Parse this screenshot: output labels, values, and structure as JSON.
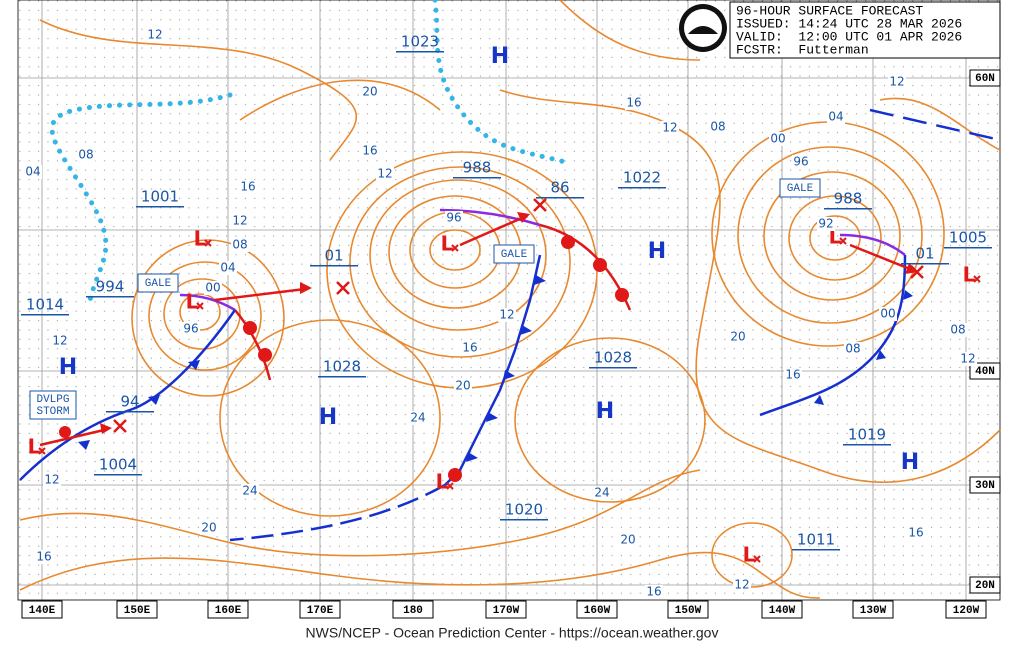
{
  "header": {
    "title": "96-HOUR SURFACE FORECAST",
    "issued": "ISSUED: 14:24 UTC 28 MAR 2026",
    "valid": "VALID:  12:00 UTC 01 APR 2026",
    "forecaster": "FCSTR:  Futterman"
  },
  "footer": "NWS/NCEP - Ocean Prediction Center - https://ocean.weather.gov",
  "longitude_labels": [
    "140E",
    "150E",
    "160E",
    "170E",
    "180",
    "170W",
    "160W",
    "150W",
    "140W",
    "130W",
    "120W"
  ],
  "latitude_labels": [
    "60N",
    "40N",
    "30N",
    "20N"
  ],
  "central_pressures": [
    "1023",
    "1001",
    "994",
    "1014",
    "1004",
    "94",
    "01",
    "1028",
    "988",
    "86",
    "1022",
    "1028",
    "1020",
    "988",
    "1005",
    "01",
    "1019",
    "1011"
  ],
  "high_labels": [
    "H",
    "H",
    "H",
    "H",
    "H",
    "H"
  ],
  "low_labels": [
    "L",
    "L",
    "L",
    "L",
    "L",
    "L",
    "L",
    "L"
  ],
  "warnings": [
    "GALE",
    "GALE",
    "GALE"
  ],
  "storm_warning": {
    "line1": "DVLPG",
    "line2": "STORM"
  },
  "isobar_labels": [
    "12",
    "20",
    "16",
    "12",
    "16",
    "12",
    "08",
    "04",
    "00",
    "96",
    "96",
    "12",
    "16",
    "20",
    "24",
    "24",
    "20",
    "16",
    "12",
    "12",
    "04",
    "08",
    "16",
    "12",
    "08",
    "04",
    "00",
    "96",
    "92",
    "00",
    "08",
    "20",
    "16",
    "08",
    "12",
    "24",
    "20",
    "16",
    "12",
    "16",
    "12"
  ]
}
